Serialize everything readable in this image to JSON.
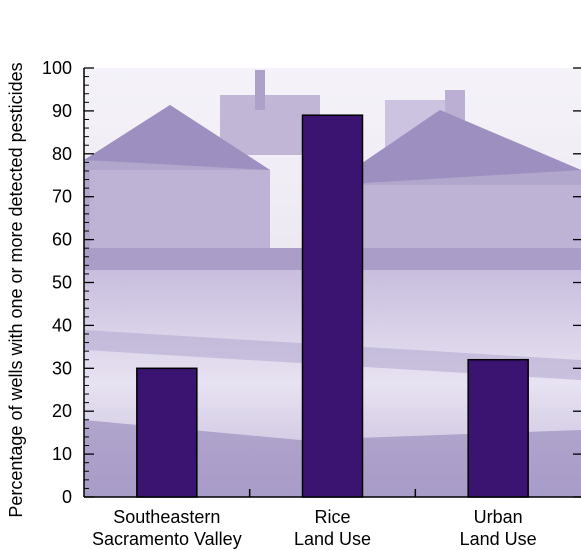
{
  "chart_data": {
    "type": "bar",
    "categories": [
      [
        "Southeastern",
        "Sacramento Valley"
      ],
      [
        "Rice",
        "Land Use"
      ],
      [
        "Urban",
        "Land Use"
      ]
    ],
    "values": [
      30,
      89,
      32
    ],
    "ylabel": "Percentage of wells with one or more detected pesticides",
    "xlabel": "",
    "ylim": [
      0,
      100
    ],
    "yticks": [
      "0",
      "10",
      "20",
      "30",
      "40",
      "50",
      "60",
      "70",
      "80",
      "90",
      "100"
    ],
    "grid": false,
    "legend": "none",
    "colors": {
      "bar": "#3a1470",
      "bar_stroke": "#000000",
      "background_tint": "#ccc3df",
      "background_dark": "#8f7fb6"
    }
  }
}
